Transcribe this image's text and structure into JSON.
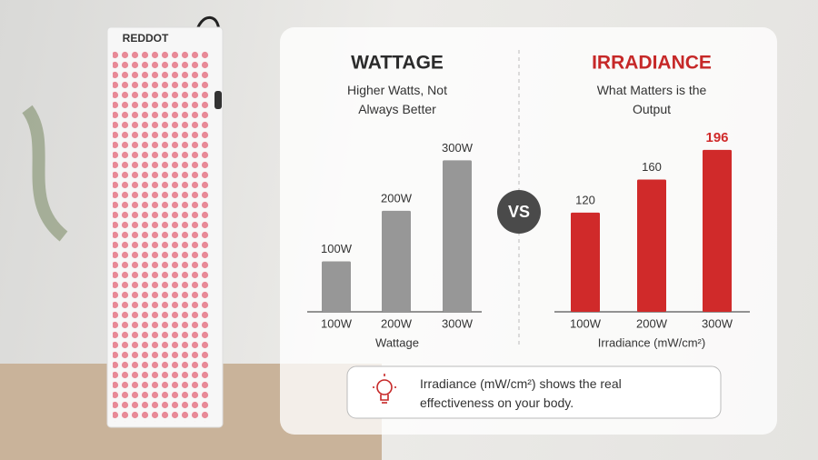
{
  "brand": "REDDOT",
  "vs": "VS",
  "note": "Irradiance (mW/cm²) shows the real effectiveness on your body.",
  "chart_data": [
    {
      "type": "bar",
      "title": "WATTAGE",
      "subtitle": "Higher Watts, Not Always Better",
      "x_label": "Wattage",
      "categories": [
        "100W",
        "200W",
        "300W"
      ],
      "values": [
        100,
        200,
        300
      ],
      "value_labels": [
        "100W",
        "200W",
        "300W"
      ],
      "color": "#979797",
      "title_color": "#2b2b2b",
      "ylim": [
        0,
        360
      ]
    },
    {
      "type": "bar",
      "title": "IRRADIANCE",
      "subtitle": "What Matters is the Output",
      "x_label": "Irradiance (mW/cm²)",
      "categories": [
        "100W",
        "200W",
        "300W"
      ],
      "values": [
        120,
        160,
        196
      ],
      "color": "#d02a2a",
      "title_color": "#c62828",
      "ylim": [
        0,
        220
      ]
    }
  ]
}
